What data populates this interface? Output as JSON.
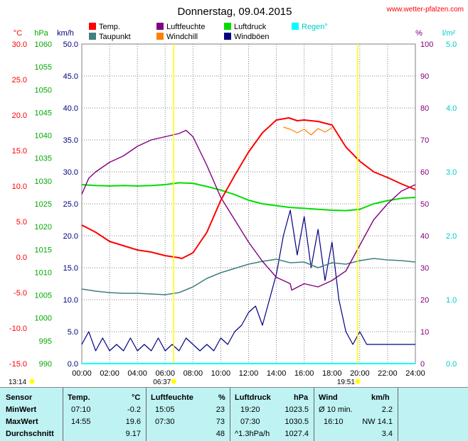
{
  "header": {
    "title": "Donnerstag, 09.04.2015",
    "site": "www.wetter-pfalzen.com"
  },
  "colors": {
    "temp": "#ff0000",
    "dew": "#408080",
    "hum": "#800080",
    "windchill": "#ff8000",
    "press": "#00dd00",
    "gust": "#000080",
    "rain": "#00ffff"
  },
  "chart_data": {
    "type": "line",
    "x_ticks": [
      "00:00",
      "02:00",
      "04:00",
      "06:00",
      "08:00",
      "10:00",
      "12:00",
      "14:00",
      "16:00",
      "18:00",
      "20:00",
      "22:00",
      "24:00"
    ],
    "axes": {
      "temp": {
        "unit": "°C",
        "range": [
          -15,
          30
        ],
        "ticks": [
          "30.0",
          "25.0",
          "20.0",
          "15.0",
          "10.0",
          "5.0",
          "0.0",
          "-5.0",
          "-10.0",
          "-15.0"
        ]
      },
      "press": {
        "unit": "hPa",
        "range": [
          990,
          1060
        ],
        "ticks": [
          "1060",
          "1055",
          "1050",
          "1045",
          "1040",
          "1035",
          "1030",
          "1025",
          "1020",
          "1015",
          "1010",
          "1005",
          "1000",
          "995",
          "990"
        ]
      },
      "wind": {
        "unit": "km/h",
        "range": [
          0,
          50
        ],
        "ticks": [
          "50.0",
          "45.0",
          "40.0",
          "35.0",
          "30.0",
          "25.0",
          "20.0",
          "15.0",
          "10.0",
          "5.0",
          "0.0"
        ]
      },
      "hum": {
        "unit": "%",
        "range": [
          0,
          100
        ],
        "ticks": [
          "100",
          "90",
          "80",
          "70",
          "60",
          "50",
          "40",
          "30",
          "20",
          "10",
          "0"
        ]
      },
      "rain": {
        "unit": "l/m²",
        "range": [
          0,
          5
        ],
        "ticks": [
          "5.0",
          "4.0",
          "3.0",
          "2.0",
          "1.0",
          "0.0"
        ]
      }
    },
    "legend": [
      {
        "label": "Temp.",
        "color": "#ff0000"
      },
      {
        "label": "Taupunkt",
        "color": "#408080"
      },
      {
        "label": "Luftfeuchte",
        "color": "#800080"
      },
      {
        "label": "Windchill",
        "color": "#ff8000"
      },
      {
        "label": "Luftdruck",
        "color": "#00dd00"
      },
      {
        "label": "Windböen",
        "color": "#000080"
      },
      {
        "label": "Regen°",
        "color": "#00ffff"
      }
    ],
    "series": {
      "temp": [
        [
          0,
          4.5
        ],
        [
          1,
          3.5
        ],
        [
          2,
          2.2
        ],
        [
          3,
          1.6
        ],
        [
          4,
          1.0
        ],
        [
          5,
          0.7
        ],
        [
          6,
          0.2
        ],
        [
          7,
          -0.1
        ],
        [
          7.2,
          -0.2
        ],
        [
          8,
          0.6
        ],
        [
          9,
          3.5
        ],
        [
          10,
          8.0
        ],
        [
          11,
          11.5
        ],
        [
          12,
          14.8
        ],
        [
          13,
          17.5
        ],
        [
          14,
          19.3
        ],
        [
          14.9,
          19.6
        ],
        [
          15.5,
          19.2
        ],
        [
          16,
          19.3
        ],
        [
          17,
          19.1
        ],
        [
          18,
          18.6
        ],
        [
          19,
          15.5
        ],
        [
          20,
          13.5
        ],
        [
          21,
          12.0
        ],
        [
          22,
          11.2
        ],
        [
          23,
          10.3
        ],
        [
          24,
          9.5
        ]
      ],
      "dewpoint": [
        [
          0,
          -4.5
        ],
        [
          1,
          -4.8
        ],
        [
          2,
          -5.0
        ],
        [
          3,
          -5.1
        ],
        [
          4,
          -5.1
        ],
        [
          5,
          -5.2
        ],
        [
          6,
          -5.3
        ],
        [
          7,
          -5.0
        ],
        [
          8,
          -4.2
        ],
        [
          9,
          -3.0
        ],
        [
          10,
          -2.2
        ],
        [
          11,
          -1.6
        ],
        [
          12,
          -1.0
        ],
        [
          13,
          -0.6
        ],
        [
          14,
          -0.3
        ],
        [
          15,
          -0.8
        ],
        [
          16,
          -0.7
        ],
        [
          17,
          -1.5
        ],
        [
          18,
          -0.8
        ],
        [
          19,
          -1.0
        ],
        [
          20,
          -0.5
        ],
        [
          21,
          -0.2
        ],
        [
          22,
          -0.4
        ],
        [
          23,
          -0.5
        ],
        [
          24,
          -0.7
        ]
      ],
      "humidity": [
        [
          0,
          53
        ],
        [
          0.5,
          58
        ],
        [
          1,
          60
        ],
        [
          2,
          63
        ],
        [
          3,
          65
        ],
        [
          4,
          68
        ],
        [
          5,
          70
        ],
        [
          6,
          71
        ],
        [
          7,
          72
        ],
        [
          7.5,
          73
        ],
        [
          8,
          71
        ],
        [
          9,
          62
        ],
        [
          10,
          52
        ],
        [
          11,
          45
        ],
        [
          12,
          38
        ],
        [
          13,
          32
        ],
        [
          14,
          27
        ],
        [
          15,
          25
        ],
        [
          15.1,
          23
        ],
        [
          16,
          25
        ],
        [
          17,
          24
        ],
        [
          18,
          26
        ],
        [
          19,
          29
        ],
        [
          20,
          37
        ],
        [
          21,
          45
        ],
        [
          22,
          50
        ],
        [
          23,
          54
        ],
        [
          24,
          56
        ]
      ],
      "windchill": [
        [
          14.5,
          18.3
        ],
        [
          15,
          18.0
        ],
        [
          15.5,
          17.5
        ],
        [
          16,
          18.0
        ],
        [
          16.5,
          17.2
        ],
        [
          17,
          18.1
        ],
        [
          17.5,
          17.6
        ],
        [
          18,
          18.2
        ]
      ],
      "pressure": [
        [
          0,
          1029.2
        ],
        [
          1,
          1029.0
        ],
        [
          2,
          1028.9
        ],
        [
          3,
          1029.0
        ],
        [
          4,
          1028.9
        ],
        [
          5,
          1029.0
        ],
        [
          6,
          1029.2
        ],
        [
          7,
          1029.6
        ],
        [
          8,
          1029.5
        ],
        [
          9,
          1028.8
        ],
        [
          10,
          1028.0
        ],
        [
          11,
          1027.0
        ],
        [
          12,
          1025.8
        ],
        [
          13,
          1025.0
        ],
        [
          14,
          1024.6
        ],
        [
          15,
          1024.2
        ],
        [
          16,
          1024.0
        ],
        [
          17,
          1023.8
        ],
        [
          18,
          1023.6
        ],
        [
          19,
          1023.5
        ],
        [
          20,
          1023.8
        ],
        [
          21,
          1025.0
        ],
        [
          22,
          1025.7
        ],
        [
          23,
          1026.2
        ],
        [
          24,
          1026.4
        ]
      ],
      "gusts": [
        [
          0,
          3
        ],
        [
          0.5,
          5
        ],
        [
          1,
          2
        ],
        [
          1.5,
          4
        ],
        [
          2,
          2
        ],
        [
          2.5,
          3
        ],
        [
          3,
          2
        ],
        [
          3.5,
          4
        ],
        [
          4,
          2
        ],
        [
          4.5,
          3
        ],
        [
          5,
          2
        ],
        [
          5.5,
          4
        ],
        [
          6,
          2
        ],
        [
          6.5,
          3
        ],
        [
          7,
          2
        ],
        [
          7.5,
          4
        ],
        [
          8,
          3
        ],
        [
          8.5,
          2
        ],
        [
          9,
          3
        ],
        [
          9.5,
          2
        ],
        [
          10,
          4
        ],
        [
          10.5,
          3
        ],
        [
          11,
          5
        ],
        [
          11.5,
          6
        ],
        [
          12,
          8
        ],
        [
          12.5,
          9
        ],
        [
          13,
          6
        ],
        [
          13.5,
          10
        ],
        [
          14,
          14
        ],
        [
          14.5,
          20
        ],
        [
          15,
          24
        ],
        [
          15.5,
          17
        ],
        [
          16,
          23
        ],
        [
          16.5,
          15
        ],
        [
          17,
          21
        ],
        [
          17.5,
          13
        ],
        [
          18,
          19
        ],
        [
          18.5,
          10
        ],
        [
          19,
          5
        ],
        [
          19.5,
          3
        ],
        [
          20,
          5
        ],
        [
          20.5,
          3
        ],
        [
          21,
          3
        ],
        [
          21.5,
          3
        ],
        [
          22,
          3
        ],
        [
          22.5,
          3
        ],
        [
          23,
          3
        ],
        [
          23.5,
          3
        ],
        [
          24,
          3
        ]
      ]
    },
    "marker_times": {
      "left": "13:14",
      "sunrise": "06:37",
      "sunset": "19:51"
    }
  },
  "table": {
    "headers": {
      "sensor": "Sensor",
      "temp": "Temp.",
      "temp_unit": "°C",
      "hum": "Luftfeuchte",
      "hum_unit": "%",
      "press": "Luftdruck",
      "press_unit": "hPa",
      "wind": "Wind",
      "wind_unit": "km/h"
    },
    "rows": [
      {
        "label": "MinWert",
        "t_time": "07:10",
        "t_val": "-0.2",
        "h_time": "15:05",
        "h_val": "23",
        "p_time": "19:20",
        "p_val": "1023.5",
        "w_time": "Ø 10 min.",
        "w_val": "2.2"
      },
      {
        "label": "MaxWert",
        "t_time": "14:55",
        "t_val": "19.6",
        "h_time": "07:30",
        "h_val": "73",
        "p_time": "07:30",
        "p_val": "1030.5",
        "w_time": "16:10",
        "w_val": "NW 14.1"
      },
      {
        "label": "Durchschnitt",
        "t_time": "",
        "t_val": "9.17",
        "h_time": "",
        "h_val": "48",
        "p_time": "^1.3hPa/h",
        "p_val": "1027.4",
        "w_time": "",
        "w_val": "3.4"
      }
    ]
  }
}
